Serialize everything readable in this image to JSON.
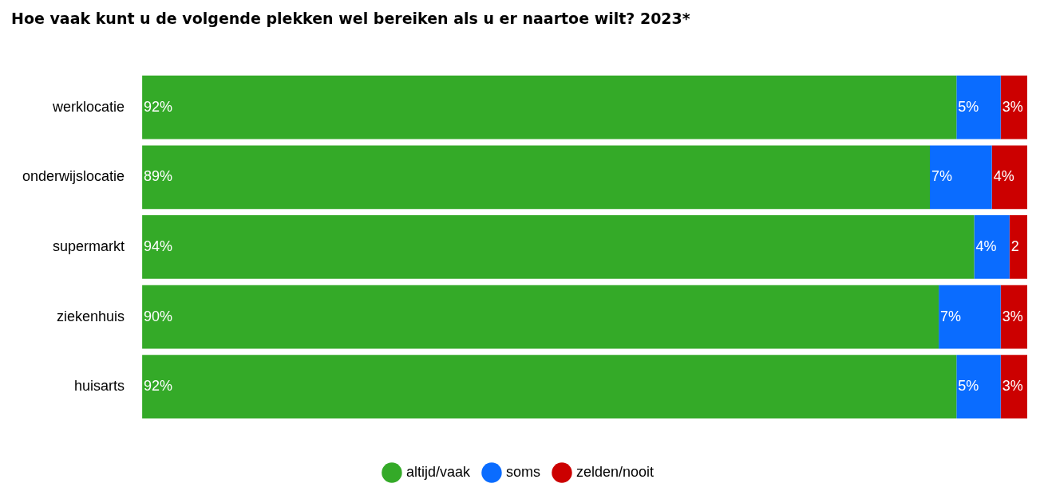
{
  "chart_data": {
    "type": "bar",
    "orientation": "horizontal",
    "stacked": true,
    "title": "Hoe vaak kunt u de volgende plekken wel bereiken als u er naartoe wilt? 2023*",
    "categories": [
      "werklocatie",
      "onderwijslocatie",
      "supermarkt",
      "ziekenhuis",
      "huisarts"
    ],
    "series": [
      {
        "name": "altijd/vaak",
        "color": "#34aa28",
        "values": [
          92,
          89,
          94,
          90,
          92
        ],
        "value_labels": [
          "92%",
          "89%",
          "94%",
          "90%",
          "92%"
        ]
      },
      {
        "name": "soms",
        "color": "#0a6cff",
        "values": [
          5,
          7,
          4,
          7,
          5
        ],
        "value_labels": [
          "5%",
          "7%",
          "4%",
          "7%",
          "5%"
        ]
      },
      {
        "name": "zelden/nooit",
        "color": "#cc0000",
        "values": [
          3,
          4,
          2,
          3,
          3
        ],
        "value_labels": [
          "3%",
          "4%",
          "2",
          "3%",
          "3%"
        ]
      }
    ],
    "legend": "bottom",
    "tick_labels": "y"
  }
}
